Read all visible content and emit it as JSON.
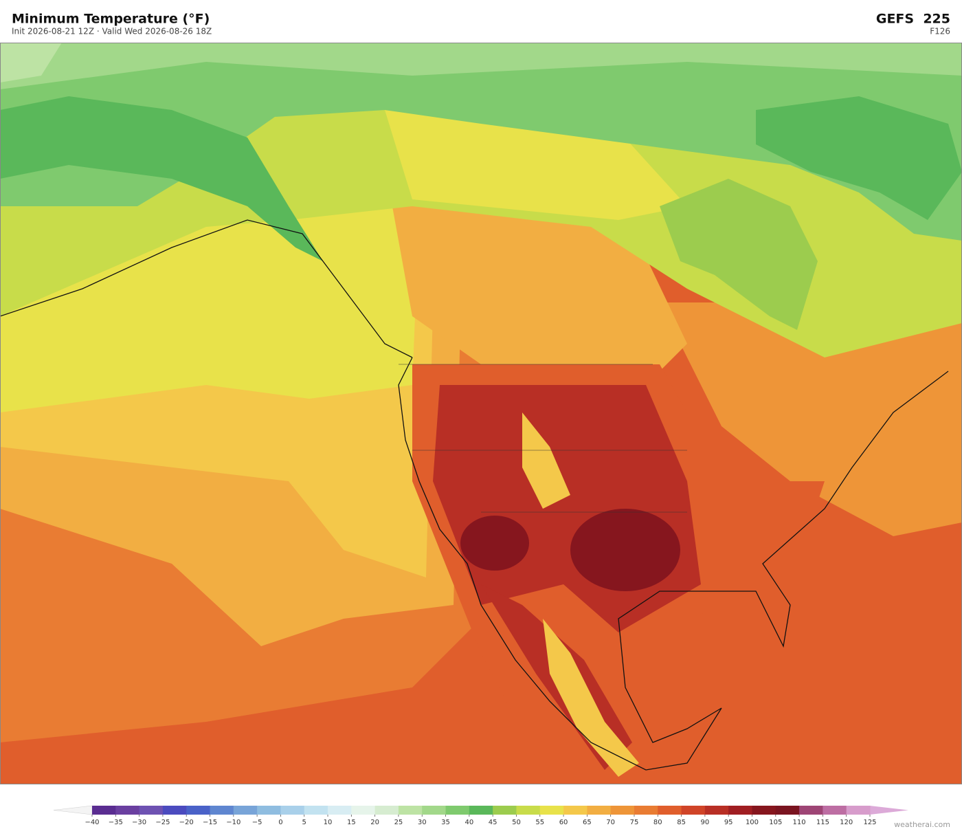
{
  "header": {
    "title": "Minimum Temperature  (°F)",
    "subtitle": "Init 2026-08-21 12Z  ·  Valid Wed 2026-08-26 18Z",
    "model": "GEFS  225",
    "forecast_hour": "F126"
  },
  "colorbar": {
    "ticks": [
      {
        "value": -40,
        "label": "−40"
      },
      {
        "value": -35,
        "label": "−35"
      },
      {
        "value": -30,
        "label": "−30"
      },
      {
        "value": -25,
        "label": "−25"
      },
      {
        "value": -20,
        "label": "−20"
      },
      {
        "value": -15,
        "label": "−15"
      },
      {
        "value": -10,
        "label": "−10"
      },
      {
        "value": -5,
        "label": "−5"
      },
      0,
      5,
      10,
      15,
      20,
      25,
      30,
      35,
      40,
      45,
      50,
      55,
      60,
      65,
      70,
      75,
      80,
      85,
      90,
      95,
      100,
      105,
      110,
      115,
      120,
      125
    ],
    "colors": [
      "#5a2d91",
      "#6a3fa0",
      "#6e52b2",
      "#4b4bbf",
      "#4a62c8",
      "#5f86d0",
      "#78a4d8",
      "#8fbde0",
      "#a9d0ea",
      "#c2e2f0",
      "#d8edf3",
      "#e6f4ea",
      "#d6ecd0",
      "#bde3a4",
      "#a2d88a",
      "#7fca6e",
      "#5ab85a",
      "#9ccc4e",
      "#c8dc4a",
      "#e8e24a",
      "#f4c84a",
      "#f2ae42",
      "#ee9538",
      "#e97c33",
      "#e05e2c",
      "#d04428",
      "#b82f25",
      "#a01e22",
      "#86161e",
      "#7a1420",
      "#9e4575",
      "#bd6ea3",
      "#d79ccb"
    ],
    "under_color": "#f4f4f4",
    "over_color": "#dcaad8"
  },
  "watermark": "weatherai.com"
}
